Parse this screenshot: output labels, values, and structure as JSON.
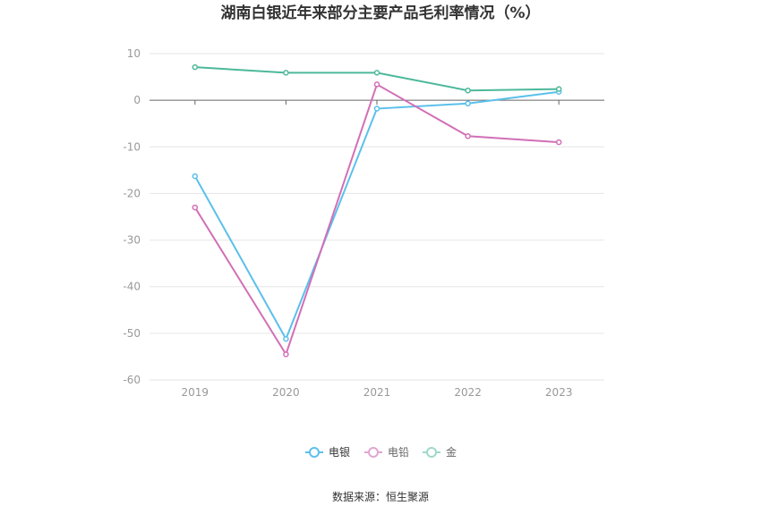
{
  "chart_data": {
    "type": "line",
    "title": "湖南白银近年来部分主要产品毛利率情况（%）",
    "categories": [
      "2019",
      "2020",
      "2021",
      "2022",
      "2023"
    ],
    "ylim": [
      -60,
      10
    ],
    "yticks": [
      10,
      0,
      -10,
      -20,
      -30,
      -40,
      -50,
      -60
    ],
    "grid": true,
    "legend_position": "bottom-center",
    "series": [
      {
        "name": "电银",
        "color": "#5bc0eb",
        "values": [
          -16.3,
          -51.2,
          -1.8,
          -0.7,
          1.8
        ]
      },
      {
        "name": "电铅",
        "color": "#d26fb6",
        "values": [
          -23.0,
          -54.5,
          3.4,
          -7.7,
          -9.0
        ]
      },
      {
        "name": "金",
        "color": "#4cb89a",
        "values": [
          7.1,
          5.9,
          5.9,
          2.1,
          2.4
        ]
      }
    ],
    "source": "数据来源：恒生聚源"
  }
}
